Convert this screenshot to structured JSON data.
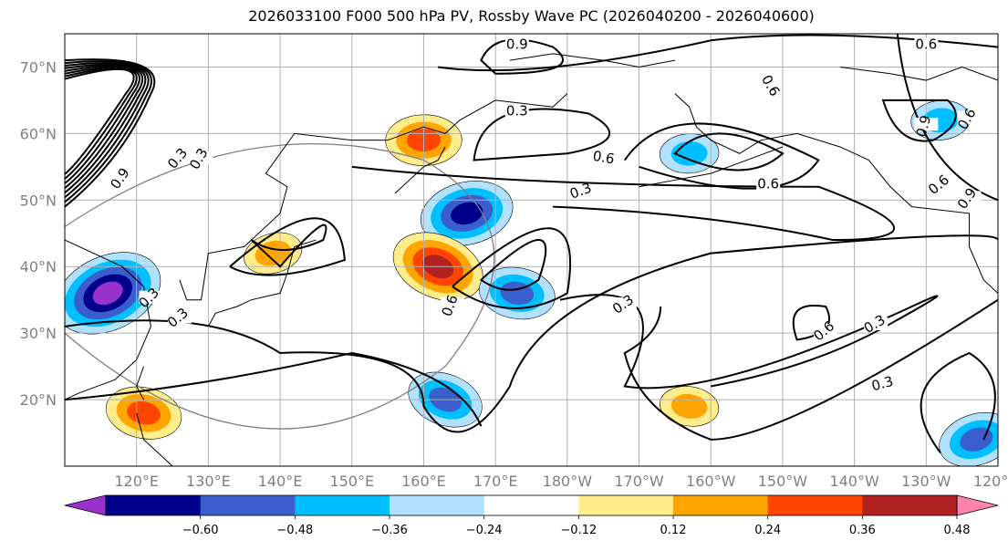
{
  "chart_data": {
    "type": "heatmap",
    "title": "2026033100 F000 500 hPa PV, Rossby Wave PC (2026040200 - 2026040600)",
    "projection": "PlateCarree (Pacific-centred)",
    "lon_range": [
      110,
      240
    ],
    "lat_range": [
      10,
      75
    ],
    "grid": true,
    "y_ticks": [
      "20°N",
      "30°N",
      "40°N",
      "50°N",
      "60°N",
      "70°N"
    ],
    "y_tick_values": [
      20,
      30,
      40,
      50,
      60,
      70
    ],
    "x_ticks": [
      "120°E",
      "130°E",
      "140°E",
      "150°E",
      "160°E",
      "170°E",
      "180°W",
      "170°W",
      "160°W",
      "150°W",
      "140°W",
      "130°W",
      "120°W"
    ],
    "x_tick_values": [
      120,
      130,
      140,
      150,
      160,
      170,
      180,
      190,
      200,
      210,
      220,
      230,
      240
    ],
    "colorbar": {
      "orientation": "horizontal",
      "extend": "both",
      "levels": [
        -0.6,
        -0.48,
        -0.36,
        -0.24,
        -0.12,
        0.12,
        0.24,
        0.36,
        0.48,
        0.6
      ],
      "tick_labels": [
        "−0.60",
        "−0.48",
        "−0.36",
        "−0.24",
        "−0.12",
        "0.12",
        "0.24",
        "0.36",
        "0.48",
        "0.60"
      ],
      "colors": [
        "#9932CC",
        "#00008B",
        "#3A5FCD",
        "#00BFFF",
        "#B0E2FF",
        "#FFFFFF",
        "#FFEC8B",
        "#FFA500",
        "#FF4500",
        "#B22222",
        "#FF82AB"
      ]
    },
    "contour_field": "500 hPa PV (PVU)",
    "contour_levels": [
      0.3,
      0.6,
      0.9
    ],
    "contour_labels": [
      {
        "text": "0.9",
        "lon": 173,
        "lat": 73
      },
      {
        "text": "0.3",
        "lon": 173,
        "lat": 63
      },
      {
        "text": "0.6",
        "lon": 185,
        "lat": 56
      },
      {
        "text": "0.6",
        "lon": 208,
        "lat": 52
      },
      {
        "text": "0.3",
        "lon": 182,
        "lat": 51
      },
      {
        "text": "0.6",
        "lon": 208,
        "lat": 67
      },
      {
        "text": "0.6",
        "lon": 230,
        "lat": 73
      },
      {
        "text": "0.3",
        "lon": 126,
        "lat": 32
      },
      {
        "text": "0.3",
        "lon": 122,
        "lat": 35
      },
      {
        "text": "0.6",
        "lon": 164,
        "lat": 34
      },
      {
        "text": "0.3",
        "lon": 188,
        "lat": 34
      },
      {
        "text": "0.6",
        "lon": 216,
        "lat": 30
      },
      {
        "text": "0.3",
        "lon": 223,
        "lat": 31
      },
      {
        "text": "0.3",
        "lon": 224,
        "lat": 22
      },
      {
        "text": "0.3",
        "lon": 126,
        "lat": 56
      },
      {
        "text": "0.3",
        "lon": 129,
        "lat": 56
      },
      {
        "text": "0.9",
        "lon": 118,
        "lat": 53
      },
      {
        "text": "0.9",
        "lon": 230,
        "lat": 61
      },
      {
        "text": "0.6",
        "lon": 236,
        "lat": 62
      },
      {
        "text": "0.6",
        "lon": 232,
        "lat": 52
      },
      {
        "text": "0.9",
        "lon": 236,
        "lat": 50
      }
    ],
    "shaded_anomalies": [
      {
        "name": "East China negative",
        "lon": 116,
        "lat": 36,
        "min": -0.6,
        "sign": "negative"
      },
      {
        "name": "South China Sea positive",
        "lon": 121,
        "lat": 18,
        "min": 0.36,
        "sign": "positive"
      },
      {
        "name": "Sea of Okhotsk positive",
        "lon": 160,
        "lat": 59,
        "min": 0.36,
        "sign": "positive"
      },
      {
        "name": "Kuril negative",
        "lon": 166,
        "lat": 48,
        "min": -0.48,
        "sign": "negative"
      },
      {
        "name": "NW Pacific positive",
        "lon": 162,
        "lat": 40,
        "min": 0.48,
        "sign": "positive"
      },
      {
        "name": "Central N Pacific negative",
        "lon": 173,
        "lat": 36,
        "min": -0.36,
        "sign": "negative"
      },
      {
        "name": "Bering Sea negative",
        "lon": 197,
        "lat": 57,
        "min": -0.24,
        "sign": "negative"
      },
      {
        "name": "Japan positive",
        "lon": 139,
        "lat": 42,
        "min": 0.24,
        "sign": "positive"
      },
      {
        "name": "Subtropical negative",
        "lon": 163,
        "lat": 20,
        "min": -0.36,
        "sign": "negative"
      },
      {
        "name": "Hawaii positive",
        "lon": 197,
        "lat": 19,
        "min": 0.24,
        "sign": "positive"
      },
      {
        "name": "Hudson Bay negative",
        "lon": 232,
        "lat": 62,
        "min": -0.24,
        "sign": "negative"
      },
      {
        "name": "Mexico negative",
        "lon": 237,
        "lat": 14,
        "min": -0.36,
        "sign": "negative"
      }
    ]
  }
}
